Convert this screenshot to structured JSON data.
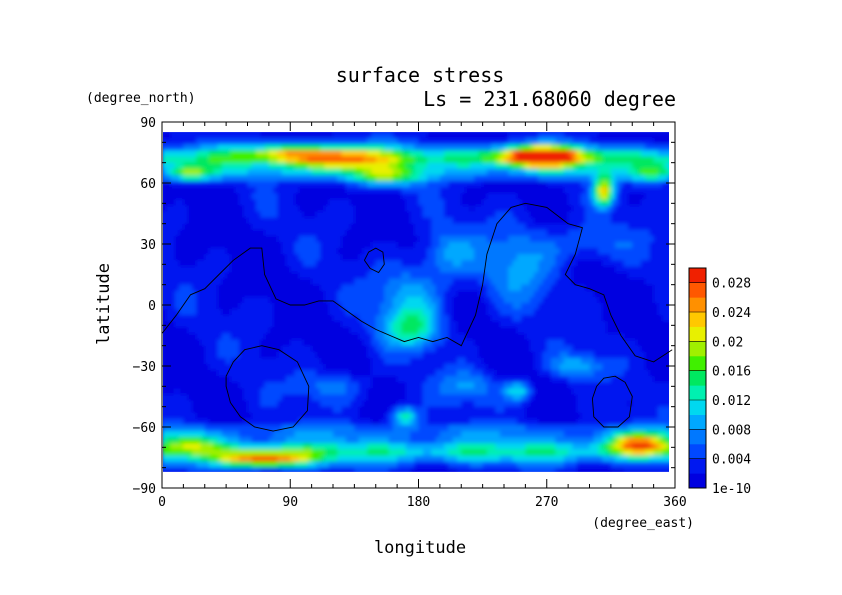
{
  "chart_data": {
    "type": "heatmap",
    "title": "surface stress",
    "subtitle": "Ls = 231.68060 degree",
    "xlabel": "longitude",
    "ylabel": "latitude",
    "x_units": "(degree_east)",
    "y_units": "(degree_north)",
    "xlim": [
      0,
      360
    ],
    "ylim": [
      -90,
      90
    ],
    "x_ticks": [
      "0",
      "90",
      "180",
      "270",
      "360"
    ],
    "y_ticks": [
      "90",
      "60",
      "30",
      "0",
      "−30",
      "−60",
      "−90"
    ],
    "x_tick_values": [
      0,
      90,
      180,
      270,
      360
    ],
    "y_tick_values": [
      90,
      60,
      30,
      0,
      -30,
      -60,
      -90
    ],
    "colorbar": {
      "min": 0,
      "max": 0.03,
      "labels": [
        "0.028",
        "0.024",
        "0.02",
        "0.016",
        "0.012",
        "0.008",
        "0.004",
        "1e-10"
      ],
      "label_values": [
        0.028,
        0.024,
        0.02,
        0.016,
        0.012,
        0.008,
        0.004,
        0
      ]
    },
    "colors": [
      "#0000e0",
      "#0018f0",
      "#0048ff",
      "#0078ff",
      "#00a8ff",
      "#00d8f0",
      "#00f0b0",
      "#00e860",
      "#40f000",
      "#a0f000",
      "#e8f000",
      "#ffc800",
      "#ff9000",
      "#ff5800",
      "#f02000"
    ],
    "data_extent_lat": [
      -82,
      85
    ],
    "features": [
      {
        "kind": "zonal_band",
        "lat": 72,
        "width": 6,
        "value": 0.012
      },
      {
        "kind": "zonal_band",
        "lat": -72,
        "width": 6,
        "value": 0.011
      },
      {
        "kind": "zonal_band",
        "lat": 64,
        "width": 3,
        "value": 0.004
      },
      {
        "kind": "zonal_band",
        "lat": -62,
        "width": 4,
        "value": 0.004
      },
      {
        "kind": "blob",
        "lon": 265,
        "lat": 73,
        "rx": 28,
        "ry": 5,
        "value": 0.026
      },
      {
        "kind": "blob",
        "lon": 125,
        "lat": 72,
        "rx": 30,
        "ry": 6,
        "value": 0.016
      },
      {
        "kind": "blob",
        "lon": 155,
        "lat": 63,
        "rx": 25,
        "ry": 5,
        "value": 0.012
      },
      {
        "kind": "blob",
        "lon": 85,
        "lat": 75,
        "rx": 25,
        "ry": 4,
        "value": 0.01
      },
      {
        "kind": "blob",
        "lon": 20,
        "lat": 65,
        "rx": 15,
        "ry": 4,
        "value": 0.012
      },
      {
        "kind": "blob",
        "lon": 310,
        "lat": 56,
        "rx": 7,
        "ry": 7,
        "value": 0.02
      },
      {
        "kind": "blob",
        "lon": 345,
        "lat": 65,
        "rx": 15,
        "ry": 5,
        "value": 0.01
      },
      {
        "kind": "blob",
        "lon": 72,
        "lat": -76,
        "rx": 32,
        "ry": 4,
        "value": 0.02
      },
      {
        "kind": "blob",
        "lon": 335,
        "lat": -68,
        "rx": 22,
        "ry": 5,
        "value": 0.018
      },
      {
        "kind": "blob",
        "lon": 20,
        "lat": -68,
        "rx": 22,
        "ry": 5,
        "value": 0.01
      },
      {
        "kind": "blob",
        "lon": 170,
        "lat": -55,
        "rx": 10,
        "ry": 5,
        "value": 0.012
      },
      {
        "kind": "blob",
        "lon": 250,
        "lat": -42,
        "rx": 10,
        "ry": 5,
        "value": 0.01
      },
      {
        "kind": "blob",
        "lon": 175,
        "lat": -12,
        "rx": 20,
        "ry": 10,
        "value": 0.01
      },
      {
        "kind": "blob",
        "lon": 175,
        "lat": 5,
        "rx": 25,
        "ry": 15,
        "value": 0.007
      },
      {
        "kind": "blob",
        "lon": 250,
        "lat": 20,
        "rx": 25,
        "ry": 20,
        "value": 0.006
      },
      {
        "kind": "blob",
        "lon": 200,
        "lat": 25,
        "rx": 20,
        "ry": 12,
        "value": 0.006
      },
      {
        "kind": "blob",
        "lon": 300,
        "lat": 30,
        "rx": 30,
        "ry": 10,
        "value": 0.005
      },
      {
        "kind": "blob",
        "lon": 290,
        "lat": -30,
        "rx": 20,
        "ry": 6,
        "value": 0.007
      },
      {
        "kind": "blob",
        "lon": 120,
        "lat": -40,
        "rx": 25,
        "ry": 8,
        "value": 0.005
      },
      {
        "kind": "blob",
        "lon": 215,
        "lat": -40,
        "rx": 20,
        "ry": 8,
        "value": 0.006
      }
    ],
    "contours": [
      [
        [
          0,
          -14
        ],
        [
          10,
          -5
        ],
        [
          20,
          5
        ],
        [
          30,
          8
        ],
        [
          40,
          15
        ],
        [
          50,
          22
        ],
        [
          62,
          28
        ],
        [
          70,
          28
        ],
        [
          72,
          15
        ],
        [
          80,
          3
        ],
        [
          90,
          0
        ],
        [
          100,
          0
        ],
        [
          110,
          2
        ],
        [
          120,
          2
        ],
        [
          128,
          -2
        ],
        [
          140,
          -8
        ],
        [
          150,
          -12
        ],
        [
          160,
          -15
        ],
        [
          170,
          -18
        ],
        [
          180,
          -16
        ],
        [
          190,
          -18
        ],
        [
          200,
          -16
        ],
        [
          210,
          -20
        ],
        [
          220,
          -5
        ],
        [
          225,
          10
        ],
        [
          228,
          25
        ],
        [
          235,
          40
        ],
        [
          245,
          48
        ],
        [
          255,
          50
        ],
        [
          270,
          48
        ],
        [
          285,
          40
        ],
        [
          295,
          38
        ],
        [
          290,
          25
        ],
        [
          283,
          15
        ],
        [
          290,
          10
        ],
        [
          300,
          8
        ],
        [
          310,
          5
        ],
        [
          315,
          -5
        ],
        [
          322,
          -15
        ],
        [
          332,
          -25
        ],
        [
          345,
          -28
        ],
        [
          358,
          -22
        ]
      ],
      [
        [
          142,
          22
        ],
        [
          145,
          26
        ],
        [
          150,
          28
        ],
        [
          155,
          26
        ],
        [
          156,
          20
        ],
        [
          152,
          16
        ],
        [
          146,
          18
        ],
        [
          142,
          22
        ]
      ],
      [
        [
          45,
          -35
        ],
        [
          50,
          -28
        ],
        [
          58,
          -22
        ],
        [
          70,
          -20
        ],
        [
          82,
          -22
        ],
        [
          95,
          -28
        ],
        [
          103,
          -40
        ],
        [
          102,
          -52
        ],
        [
          92,
          -60
        ],
        [
          78,
          -62
        ],
        [
          65,
          -60
        ],
        [
          55,
          -55
        ],
        [
          48,
          -48
        ],
        [
          45,
          -40
        ],
        [
          45,
          -35
        ]
      ],
      [
        [
          305,
          -40
        ],
        [
          310,
          -36
        ],
        [
          318,
          -35
        ],
        [
          325,
          -38
        ],
        [
          330,
          -45
        ],
        [
          328,
          -55
        ],
        [
          320,
          -60
        ],
        [
          310,
          -60
        ],
        [
          303,
          -55
        ],
        [
          302,
          -46
        ],
        [
          305,
          -40
        ]
      ]
    ]
  }
}
